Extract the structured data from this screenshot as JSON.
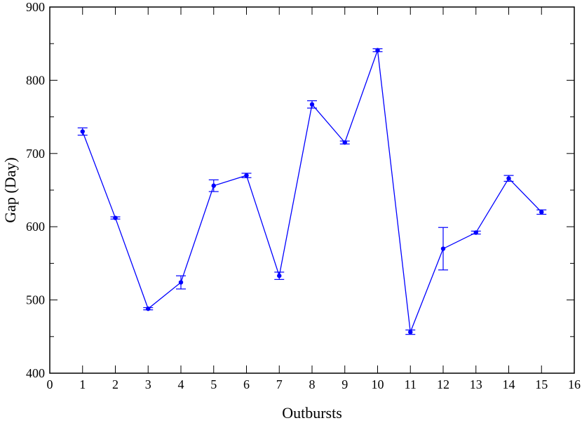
{
  "chart_data": {
    "type": "line",
    "title": "",
    "xlabel": "Outbursts",
    "ylabel": "Gap (Day)",
    "xlim": [
      0,
      16
    ],
    "ylim": [
      400,
      900
    ],
    "xticks": [
      0,
      1,
      2,
      3,
      4,
      5,
      6,
      7,
      8,
      9,
      10,
      11,
      12,
      13,
      14,
      15,
      16
    ],
    "yticks": [
      400,
      500,
      600,
      700,
      800,
      900
    ],
    "grid": false,
    "color": "#0000ff",
    "series": [
      {
        "x": [
          1,
          2,
          3,
          4,
          5,
          6,
          7,
          8,
          9,
          10,
          11,
          12,
          13,
          14,
          15
        ],
        "y": [
          730,
          612,
          488,
          524,
          656,
          670,
          533,
          767,
          715,
          841,
          456,
          570,
          592,
          666,
          620
        ],
        "yerr_low": [
          5,
          1.5,
          1.5,
          9,
          8,
          3,
          5,
          5,
          2,
          2,
          3,
          29,
          2,
          4,
          3
        ],
        "yerr_high": [
          5,
          1.5,
          1.5,
          9,
          8,
          3,
          5,
          5,
          2,
          2,
          3,
          29,
          2,
          4,
          3
        ]
      }
    ]
  }
}
